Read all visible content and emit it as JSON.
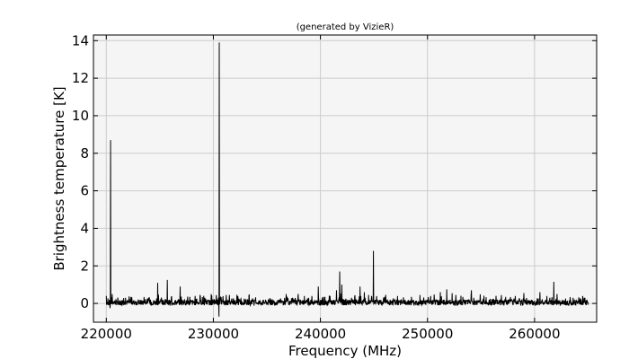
{
  "chart_data": {
    "type": "line",
    "title": "(generated by VizieR)",
    "xlabel": "Frequency (MHz)",
    "ylabel": "Brightness temperature [K]",
    "xlim": [
      218800,
      265800
    ],
    "ylim": [
      -1,
      14.3
    ],
    "grid": true,
    "x_ticks": [
      220000,
      230000,
      240000,
      250000,
      260000
    ],
    "y_ticks": [
      0,
      2,
      4,
      6,
      8,
      10,
      12,
      14
    ],
    "colors": {
      "plot_background": "#f5f5f5",
      "line": "#000000",
      "grid": "#cccccc",
      "frame": "#000000"
    },
    "series": [
      {
        "x_start": 220000,
        "x_end": 265000,
        "baseline": 0.05,
        "peaks": [
          {
            "x": 220000,
            "y": 0.4
          },
          {
            "x": 220400,
            "y": 8.7
          },
          {
            "x": 220550,
            "y": 0.5
          },
          {
            "x": 221800,
            "y": 0.3
          },
          {
            "x": 222300,
            "y": 0.35
          },
          {
            "x": 224000,
            "y": 0.3
          },
          {
            "x": 224800,
            "y": 1.1
          },
          {
            "x": 225700,
            "y": 1.25
          },
          {
            "x": 226900,
            "y": 0.9
          },
          {
            "x": 227800,
            "y": 0.35
          },
          {
            "x": 228300,
            "y": 0.4
          },
          {
            "x": 229200,
            "y": 0.3
          },
          {
            "x": 229800,
            "y": 0.5
          },
          {
            "x": 230550,
            "y": 13.9
          },
          {
            "x": 231200,
            "y": 0.45
          },
          {
            "x": 231500,
            "y": 0.45
          },
          {
            "x": 232400,
            "y": 0.25
          },
          {
            "x": 235500,
            "y": 0.2
          },
          {
            "x": 236800,
            "y": 0.5
          },
          {
            "x": 237400,
            "y": 0.3
          },
          {
            "x": 238900,
            "y": 0.3
          },
          {
            "x": 239200,
            "y": 0.4
          },
          {
            "x": 239800,
            "y": 0.9
          },
          {
            "x": 240300,
            "y": 0.35
          },
          {
            "x": 240900,
            "y": 0.4
          },
          {
            "x": 241500,
            "y": 0.7
          },
          {
            "x": 241800,
            "y": 1.7
          },
          {
            "x": 242000,
            "y": 1.0
          },
          {
            "x": 243200,
            "y": 0.35
          },
          {
            "x": 243700,
            "y": 0.9
          },
          {
            "x": 244100,
            "y": 0.6
          },
          {
            "x": 244950,
            "y": 2.8
          },
          {
            "x": 246000,
            "y": 0.35
          },
          {
            "x": 247200,
            "y": 0.4
          },
          {
            "x": 248500,
            "y": 0.35
          },
          {
            "x": 249300,
            "y": 0.45
          },
          {
            "x": 250300,
            "y": 0.4
          },
          {
            "x": 251200,
            "y": 0.6
          },
          {
            "x": 251800,
            "y": 0.75
          },
          {
            "x": 252300,
            "y": 0.55
          },
          {
            "x": 253300,
            "y": 0.35
          },
          {
            "x": 254100,
            "y": 0.7
          },
          {
            "x": 255200,
            "y": 0.25
          },
          {
            "x": 257300,
            "y": 0.35
          },
          {
            "x": 258200,
            "y": 0.4
          },
          {
            "x": 259000,
            "y": 0.55
          },
          {
            "x": 260500,
            "y": 0.6
          },
          {
            "x": 261800,
            "y": 1.15
          },
          {
            "x": 262100,
            "y": 0.5
          },
          {
            "x": 263600,
            "y": 0.3
          },
          {
            "x": 264700,
            "y": 0.3
          }
        ],
        "dips": [
          {
            "x": 220350,
            "y": -0.25
          },
          {
            "x": 230520,
            "y": -0.7
          },
          {
            "x": 226000,
            "y": -0.12
          },
          {
            "x": 233800,
            "y": -0.12
          },
          {
            "x": 252600,
            "y": -0.12
          },
          {
            "x": 262400,
            "y": -0.12
          }
        ]
      }
    ]
  }
}
